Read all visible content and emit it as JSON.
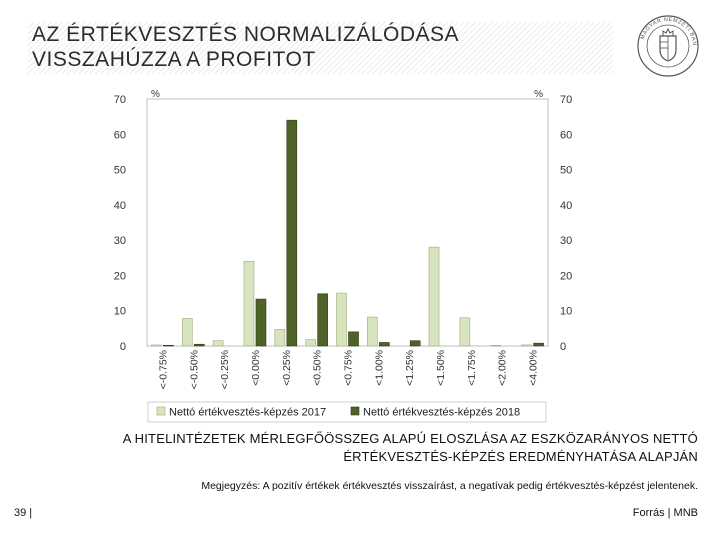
{
  "title": {
    "line1": "AZ ÉRTÉKVESZTÉS NORMALIZÁLÓDÁSA",
    "line2": "VISSZAHÚZZA A PROFITOT"
  },
  "chart_data": {
    "type": "bar",
    "categories": [
      "<-0.75%",
      "<-0.50%",
      "<-0.25%",
      "<0.00%",
      "<0.25%",
      "<0.50%",
      "<0.75%",
      "<1.00%",
      "<1.25%",
      "<1.50%",
      "<1.75%",
      "<2.00%",
      "<4.00%"
    ],
    "series": [
      {
        "name": "Nettó értékvesztés-képzés 2017",
        "color": "#d7e4bd",
        "values": [
          0.3,
          7.8,
          1.5,
          24,
          4.7,
          1.8,
          15,
          8.2,
          0,
          28,
          8,
          0.2,
          0.3
        ]
      },
      {
        "name": "Nettó értékvesztés-képzés 2018",
        "color": "#4f6228",
        "values": [
          0.2,
          0.5,
          0,
          13.3,
          64,
          14.8,
          4,
          1,
          1.5,
          0,
          0,
          0,
          0.8
        ]
      }
    ],
    "ylim": [
      0,
      70
    ],
    "yticks": [
      0,
      10,
      20,
      30,
      40,
      50,
      60,
      70
    ],
    "y_unit_left": "%",
    "y_unit_right": "%",
    "legend_position": "bottom",
    "grid": false
  },
  "caption": {
    "line1": "A HITELINTÉZETEK MÉRLEGFŐÖSSZEG ALAPÚ ELOSZLÁSA AZ ESZKÖZARÁNYOS NETTÓ",
    "line2": "ÉRTÉKVESZTÉS-KÉPZÉS EREDMÉNYHATÁSA ALAPJÁN"
  },
  "note": "Megjegyzés: A pozitív értékek értékvesztés visszaírást, a negatívak pedig értékvesztés-képzést jelentenek.",
  "footer": {
    "page": "39 |",
    "source": "Forrás | MNB"
  },
  "logo": {
    "text": "MAGYAR NEMZETI BANK"
  }
}
